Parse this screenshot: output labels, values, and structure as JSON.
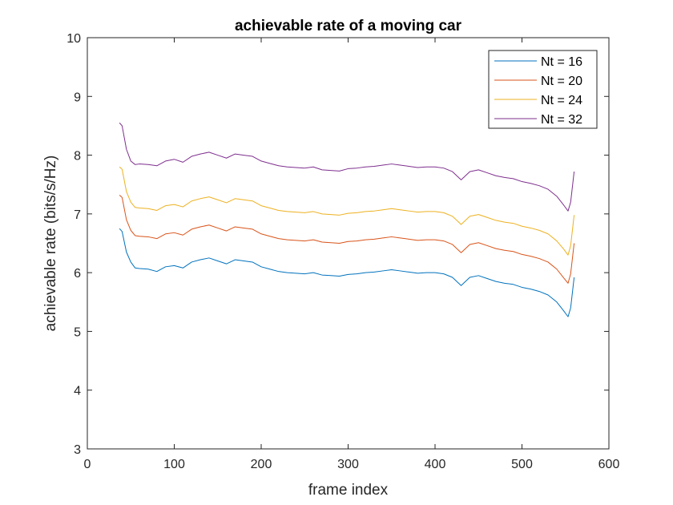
{
  "chart_data": {
    "type": "line",
    "title": "achievable rate of a moving car",
    "xlabel": "frame index",
    "ylabel": "achievable rate (bits/s/Hz)",
    "xlim": [
      0,
      600
    ],
    "ylim": [
      3,
      10
    ],
    "xticks": [
      0,
      100,
      200,
      300,
      400,
      500,
      600
    ],
    "yticks": [
      3,
      4,
      5,
      6,
      7,
      8,
      9,
      10
    ],
    "grid": false,
    "legend_position": "top-right",
    "x": [
      37,
      40,
      45,
      50,
      55,
      60,
      70,
      80,
      90,
      100,
      110,
      120,
      130,
      140,
      150,
      160,
      170,
      180,
      190,
      200,
      210,
      220,
      230,
      240,
      250,
      260,
      270,
      280,
      290,
      300,
      310,
      320,
      330,
      340,
      350,
      360,
      370,
      380,
      390,
      400,
      410,
      420,
      430,
      440,
      450,
      460,
      470,
      480,
      490,
      500,
      510,
      520,
      530,
      540,
      548,
      553,
      556,
      560
    ],
    "series": [
      {
        "name": "Nt = 16",
        "color": "#0072BD",
        "values": [
          6.75,
          6.7,
          6.35,
          6.18,
          6.08,
          6.07,
          6.06,
          6.02,
          6.1,
          6.12,
          6.08,
          6.18,
          6.22,
          6.25,
          6.2,
          6.15,
          6.22,
          6.2,
          6.18,
          6.1,
          6.06,
          6.02,
          6.0,
          5.99,
          5.98,
          6.0,
          5.96,
          5.95,
          5.94,
          5.97,
          5.98,
          6.0,
          6.01,
          6.03,
          6.05,
          6.03,
          6.01,
          5.99,
          6.0,
          6.0,
          5.98,
          5.92,
          5.78,
          5.92,
          5.95,
          5.9,
          5.85,
          5.82,
          5.8,
          5.75,
          5.72,
          5.68,
          5.62,
          5.5,
          5.35,
          5.25,
          5.4,
          5.92
        ]
      },
      {
        "name": "Nt = 20",
        "color": "#D95319",
        "values": [
          7.32,
          7.28,
          6.9,
          6.72,
          6.63,
          6.62,
          6.61,
          6.58,
          6.66,
          6.68,
          6.64,
          6.74,
          6.78,
          6.81,
          6.76,
          6.71,
          6.78,
          6.76,
          6.74,
          6.66,
          6.62,
          6.58,
          6.56,
          6.55,
          6.54,
          6.56,
          6.52,
          6.51,
          6.5,
          6.53,
          6.54,
          6.56,
          6.57,
          6.59,
          6.61,
          6.59,
          6.57,
          6.55,
          6.56,
          6.56,
          6.54,
          6.48,
          6.34,
          6.48,
          6.51,
          6.46,
          6.41,
          6.38,
          6.36,
          6.31,
          6.28,
          6.24,
          6.18,
          6.06,
          5.91,
          5.82,
          5.98,
          6.5
        ]
      },
      {
        "name": "Nt = 24",
        "color": "#EDB120",
        "values": [
          7.8,
          7.76,
          7.38,
          7.2,
          7.11,
          7.1,
          7.09,
          7.06,
          7.14,
          7.16,
          7.12,
          7.22,
          7.26,
          7.29,
          7.24,
          7.19,
          7.26,
          7.24,
          7.22,
          7.14,
          7.1,
          7.06,
          7.04,
          7.03,
          7.02,
          7.04,
          7.0,
          6.99,
          6.98,
          7.01,
          7.02,
          7.04,
          7.05,
          7.07,
          7.09,
          7.07,
          7.05,
          7.03,
          7.04,
          7.04,
          7.02,
          6.96,
          6.82,
          6.96,
          6.99,
          6.94,
          6.89,
          6.86,
          6.84,
          6.79,
          6.76,
          6.72,
          6.66,
          6.54,
          6.4,
          6.3,
          6.46,
          6.98
        ]
      },
      {
        "name": "Nt = 32",
        "color": "#7E2F8E",
        "values": [
          8.55,
          8.5,
          8.1,
          7.9,
          7.84,
          7.85,
          7.84,
          7.82,
          7.9,
          7.93,
          7.88,
          7.98,
          8.02,
          8.05,
          8.0,
          7.95,
          8.02,
          8.0,
          7.98,
          7.9,
          7.86,
          7.82,
          7.8,
          7.79,
          7.78,
          7.8,
          7.75,
          7.74,
          7.73,
          7.77,
          7.78,
          7.8,
          7.81,
          7.83,
          7.85,
          7.83,
          7.81,
          7.79,
          7.8,
          7.8,
          7.78,
          7.72,
          7.58,
          7.72,
          7.75,
          7.7,
          7.65,
          7.62,
          7.6,
          7.55,
          7.52,
          7.48,
          7.42,
          7.3,
          7.15,
          7.05,
          7.2,
          7.72
        ]
      }
    ]
  }
}
